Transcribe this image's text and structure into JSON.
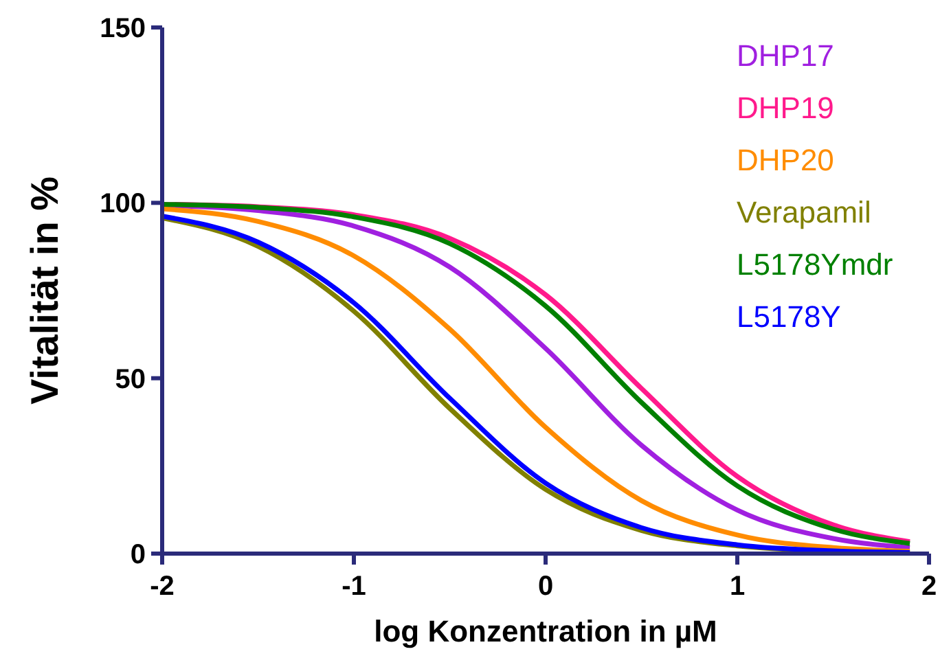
{
  "chart_data": {
    "type": "line",
    "xlabel": "log Konzentration in µM",
    "ylabel": "Vitalität in %",
    "x": [
      -2,
      -1.5,
      -1,
      -0.5,
      0,
      0.5,
      1,
      1.5,
      1.9
    ],
    "series": [
      {
        "name": "DHP17",
        "color": "#a020e0",
        "values": [
          99.3,
          97.8,
          93.4,
          81.7,
          58.5,
          30.9,
          12.4,
          4.3,
          1.7
        ]
      },
      {
        "name": "DHP19",
        "color": "#ff1a8c",
        "values": [
          99.6,
          98.9,
          96.6,
          89.9,
          73.8,
          47.1,
          22.0,
          8.2,
          3.4
        ]
      },
      {
        "name": "DHP20",
        "color": "#ff8c00",
        "values": [
          98.3,
          94.7,
          84.9,
          64.0,
          36.0,
          15.1,
          5.3,
          1.7,
          0.7
        ]
      },
      {
        "name": "Verapamil",
        "color": "#808000",
        "values": [
          95.7,
          87.6,
          69.1,
          41.4,
          18.3,
          6.6,
          2.2,
          0.7,
          0.3
        ]
      },
      {
        "name": "L5178Ymdr",
        "color": "#008000",
        "values": [
          99.6,
          98.7,
          96.0,
          88.4,
          70.6,
          43.1,
          19.3,
          7.0,
          2.9
        ]
      },
      {
        "name": "L5178Y",
        "color": "#0000ff",
        "values": [
          96.2,
          88.8,
          71.5,
          44.3,
          20.1,
          7.4,
          2.5,
          0.8,
          0.3
        ]
      }
    ],
    "xlim": [
      -2,
      2
    ],
    "xticks": [
      -2,
      -1,
      0,
      1,
      2
    ],
    "ylim": [
      0,
      150
    ],
    "yticks": [
      0,
      50,
      100,
      150
    ],
    "grid": false,
    "legend": "top right",
    "marker": "none",
    "line_style": "solid"
  }
}
